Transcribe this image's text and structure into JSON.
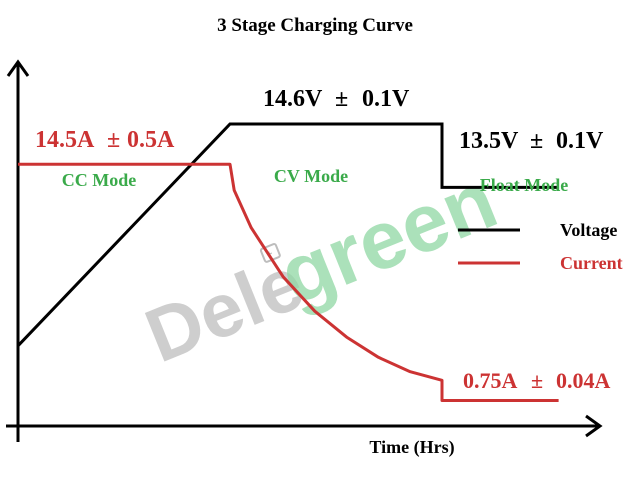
{
  "chart_data": {
    "type": "line",
    "title": "3 Stage Charging Curve",
    "xlabel": "Time (Hrs)",
    "ylabel": "",
    "stages": [
      {
        "name": "CC Mode",
        "x_start": 0,
        "x_end": 1
      },
      {
        "name": "CV Mode",
        "x_start": 1,
        "x_end": 2
      },
      {
        "name": "Float Mode",
        "x_start": 2,
        "x_end": 2.55
      }
    ],
    "series": [
      {
        "name": "Voltage",
        "color": "#000000",
        "points": [
          [
            0,
            0.23
          ],
          [
            1.0,
            1.0
          ],
          [
            2.0,
            1.0
          ],
          [
            2.0,
            0.78
          ],
          [
            2.55,
            0.78
          ]
        ]
      },
      {
        "name": "Current",
        "color": "#cc3333",
        "points": [
          [
            0,
            0.86
          ],
          [
            1.0,
            0.86
          ],
          [
            1.02,
            0.77
          ],
          [
            1.1,
            0.64
          ],
          [
            1.25,
            0.47
          ],
          [
            1.4,
            0.35
          ],
          [
            1.55,
            0.26
          ],
          [
            1.7,
            0.19
          ],
          [
            1.85,
            0.14
          ],
          [
            2.0,
            0.11
          ],
          [
            2.0,
            0.04
          ],
          [
            2.55,
            0.04
          ]
        ]
      }
    ],
    "annotations": [
      {
        "id": "cc_current",
        "text": "14.5A",
        "tolerance": "0.5A",
        "color": "#cc3333"
      },
      {
        "id": "cv_voltage",
        "text": "14.6V",
        "tolerance": "0.1V",
        "color": "#000000"
      },
      {
        "id": "float_voltage",
        "text": "13.5V",
        "tolerance": "0.1V",
        "color": "#000000"
      },
      {
        "id": "float_current",
        "text": "0.75A",
        "tolerance": "0.04A",
        "color": "#cc3333"
      }
    ],
    "legend": {
      "placement": "right",
      "entries": [
        {
          "label": "Voltage",
          "color": "#000000"
        },
        {
          "label": "Current",
          "color": "#cc3333"
        }
      ]
    },
    "plus_minus_symbol": "±",
    "stage_label_color": "#3aaa4a",
    "watermark": "Deligreen"
  }
}
